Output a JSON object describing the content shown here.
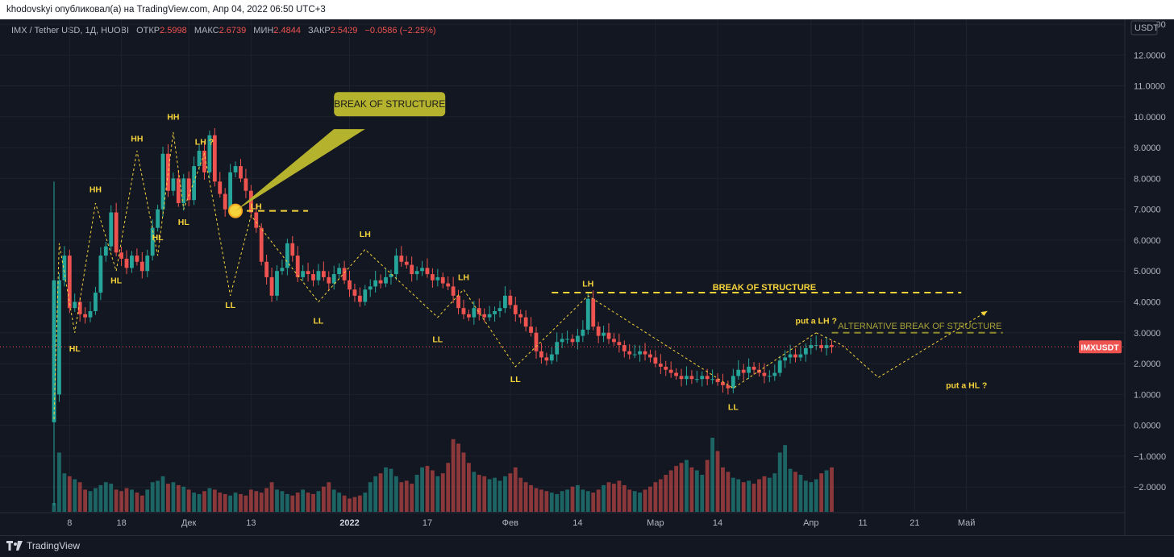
{
  "header": {
    "publisher_line": "khodovskyi опубликовал(а) на TradingView.com, Апр 04, 2022 06:50 UTC+3"
  },
  "legend": {
    "symbol": "IMX / Tether USD, 1Д, HUOBI",
    "open_label": "ОТКР",
    "open_value": "2.5998",
    "high_label": "МАКС",
    "high_value": "2.6739",
    "low_label": "МИН",
    "low_value": "2.4844",
    "close_label": "ЗАКР",
    "close_value": "2.5429",
    "change": "−0.0586 (−2.25%)"
  },
  "footer": {
    "brand": "TradingView"
  },
  "colors": {
    "up": "#26a69a",
    "down": "#ef5350",
    "annotation": "#f5d33b",
    "callout": "#b5b22d",
    "price_line": "#ef5350"
  },
  "chart_data": {
    "type": "candlestick",
    "currency_label": "USDT",
    "current_price_label": "IMXUSDT",
    "current_price": 2.5429,
    "y_ticks": [
      "13.0000",
      "12.0000",
      "11.0000",
      "10.0000",
      "9.0000",
      "8.0000",
      "7.0000",
      "6.0000",
      "5.0000",
      "4.0000",
      "3.0000",
      "2.0000",
      "1.0000",
      "0.0000",
      "−1.0000",
      "−2.0000"
    ],
    "y_tick_values": [
      13,
      12,
      11,
      10,
      9,
      8,
      7,
      6,
      5,
      4,
      3,
      2,
      1,
      0,
      -1,
      -2
    ],
    "x_ticks": [
      "8",
      "18",
      "Дек",
      "13",
      "2022",
      "17",
      "Фев",
      "14",
      "Мар",
      "14",
      "Апр",
      "11",
      "21",
      "Май"
    ],
    "x_tick_days": [
      3,
      13,
      26,
      38,
      57,
      72,
      88,
      101,
      116,
      128,
      146,
      156,
      166,
      176
    ],
    "ylim": [
      -2.7,
      13.0
    ],
    "close_path": [
      [
        0,
        1.0
      ],
      [
        1,
        4.7
      ],
      [
        2,
        5.5
      ],
      [
        3,
        3.8
      ],
      [
        4,
        4.0
      ],
      [
        5,
        3.6
      ],
      [
        6,
        3.5
      ],
      [
        7,
        3.7
      ],
      [
        8,
        4.3
      ],
      [
        9,
        5.5
      ],
      [
        10,
        5.8
      ],
      [
        11,
        6.9
      ],
      [
        12,
        5.6
      ],
      [
        13,
        5.4
      ],
      [
        14,
        5.1
      ],
      [
        15,
        5.5
      ],
      [
        16,
        5.3
      ],
      [
        17,
        5.0
      ],
      [
        18,
        5.5
      ],
      [
        19,
        6.4
      ],
      [
        20,
        7.0
      ],
      [
        21,
        8.8
      ],
      [
        22,
        7.6
      ],
      [
        23,
        8.0
      ],
      [
        24,
        7.2
      ],
      [
        25,
        8.0
      ],
      [
        26,
        7.3
      ],
      [
        27,
        8.4
      ],
      [
        28,
        8.9
      ],
      [
        29,
        8.2
      ],
      [
        30,
        9.4
      ],
      [
        31,
        7.9
      ],
      [
        32,
        7.5
      ],
      [
        33,
        7.0
      ],
      [
        34,
        8.2
      ],
      [
        35,
        8.4
      ],
      [
        36,
        8.0
      ],
      [
        37,
        7.6
      ],
      [
        38,
        6.9
      ],
      [
        39,
        6.4
      ],
      [
        40,
        5.3
      ],
      [
        41,
        4.8
      ],
      [
        42,
        4.2
      ],
      [
        43,
        5.0
      ],
      [
        44,
        5.1
      ],
      [
        45,
        5.9
      ],
      [
        46,
        5.5
      ],
      [
        47,
        4.8
      ],
      [
        48,
        5.0
      ],
      [
        49,
        4.9
      ],
      [
        50,
        4.7
      ],
      [
        51,
        5.0
      ],
      [
        52,
        4.8
      ],
      [
        53,
        4.6
      ],
      [
        54,
        4.9
      ],
      [
        55,
        5.1
      ],
      [
        56,
        4.7
      ],
      [
        57,
        4.4
      ],
      [
        58,
        4.2
      ],
      [
        59,
        4.0
      ],
      [
        60,
        4.4
      ],
      [
        61,
        4.5
      ],
      [
        62,
        4.7
      ],
      [
        63,
        4.6
      ],
      [
        64,
        4.8
      ],
      [
        65,
        4.9
      ],
      [
        66,
        5.5
      ],
      [
        67,
        5.3
      ],
      [
        68,
        5.2
      ],
      [
        69,
        4.9
      ],
      [
        70,
        5.0
      ],
      [
        71,
        5.1
      ],
      [
        72,
        4.9
      ],
      [
        73,
        4.7
      ],
      [
        74,
        4.8
      ],
      [
        75,
        4.6
      ],
      [
        76,
        4.5
      ],
      [
        77,
        4.2
      ],
      [
        78,
        3.8
      ],
      [
        79,
        3.6
      ],
      [
        80,
        3.5
      ],
      [
        81,
        3.8
      ],
      [
        82,
        3.6
      ],
      [
        83,
        3.5
      ],
      [
        84,
        3.6
      ],
      [
        85,
        3.7
      ],
      [
        86,
        3.8
      ],
      [
        87,
        4.2
      ],
      [
        88,
        3.9
      ],
      [
        89,
        3.6
      ],
      [
        90,
        3.5
      ],
      [
        91,
        3.2
      ],
      [
        92,
        3.0
      ],
      [
        93,
        2.4
      ],
      [
        94,
        2.2
      ],
      [
        95,
        2.1
      ],
      [
        96,
        2.3
      ],
      [
        97,
        2.7
      ],
      [
        98,
        2.8
      ],
      [
        99,
        2.8
      ],
      [
        100,
        2.7
      ],
      [
        101,
        2.9
      ],
      [
        102,
        3.1
      ],
      [
        103,
        4.1
      ],
      [
        104,
        3.2
      ],
      [
        105,
        2.9
      ],
      [
        106,
        3.0
      ],
      [
        107,
        2.8
      ],
      [
        108,
        2.7
      ],
      [
        109,
        2.6
      ],
      [
        110,
        2.4
      ],
      [
        111,
        2.3
      ],
      [
        112,
        2.3
      ],
      [
        113,
        2.4
      ],
      [
        114,
        2.3
      ],
      [
        115,
        2.2
      ],
      [
        116,
        2.0
      ],
      [
        117,
        1.9
      ],
      [
        118,
        1.8
      ],
      [
        119,
        1.7
      ],
      [
        120,
        1.6
      ],
      [
        121,
        1.5
      ],
      [
        122,
        1.6
      ],
      [
        123,
        1.5
      ],
      [
        124,
        1.5
      ],
      [
        125,
        1.6
      ],
      [
        126,
        1.5
      ],
      [
        127,
        1.5
      ],
      [
        128,
        1.4
      ],
      [
        129,
        1.3
      ],
      [
        130,
        1.2
      ],
      [
        131,
        1.6
      ],
      [
        132,
        1.8
      ],
      [
        133,
        1.7
      ],
      [
        134,
        1.9
      ],
      [
        135,
        1.8
      ],
      [
        136,
        1.7
      ],
      [
        137,
        1.6
      ],
      [
        138,
        1.6
      ],
      [
        139,
        1.7
      ],
      [
        140,
        2.1
      ],
      [
        141,
        2.2
      ],
      [
        142,
        2.3
      ],
      [
        143,
        2.2
      ],
      [
        144,
        2.3
      ],
      [
        145,
        2.5
      ],
      [
        146,
        2.6
      ],
      [
        147,
        2.6
      ],
      [
        148,
        2.5
      ],
      [
        149,
        2.6
      ],
      [
        150,
        2.54
      ]
    ],
    "volume_path": [
      12,
      80,
      52,
      48,
      44,
      40,
      30,
      28,
      32,
      36,
      40,
      38,
      30,
      28,
      32,
      30,
      26,
      22,
      30,
      40,
      42,
      48,
      38,
      40,
      36,
      34,
      30,
      26,
      24,
      28,
      32,
      30,
      26,
      24,
      22,
      26,
      24,
      22,
      30,
      28,
      26,
      32,
      40,
      30,
      28,
      24,
      22,
      26,
      30,
      26,
      24,
      28,
      34,
      40,
      30,
      26,
      22,
      18,
      20,
      22,
      26,
      40,
      48,
      52,
      60,
      58,
      48,
      40,
      42,
      38,
      50,
      60,
      62,
      56,
      48,
      52,
      66,
      98,
      92,
      80,
      66,
      54,
      50,
      48,
      44,
      46,
      42,
      48,
      52,
      60,
      46,
      40,
      36,
      32,
      30,
      28,
      26,
      24,
      28,
      30,
      34,
      36,
      30,
      28,
      26,
      30,
      36,
      40,
      38,
      42,
      36,
      30,
      28,
      26,
      30,
      34,
      40,
      44,
      50,
      56,
      62,
      66,
      70,
      60,
      56,
      50,
      70,
      100,
      82,
      60,
      54,
      46,
      44,
      40,
      42,
      38,
      44,
      48,
      46,
      52,
      80,
      90,
      58,
      54,
      50,
      42,
      40,
      44,
      52,
      56,
      60
    ],
    "annotations": {
      "swing_labels": [
        "HH",
        "HH",
        "HH",
        "LH ?",
        "LH",
        "LH",
        "LH",
        "LH",
        "HL",
        "HL",
        "HL",
        "HL",
        "LL",
        "LL",
        "LL",
        "LL",
        "LL",
        "put a LH ?",
        "put a HL ?"
      ],
      "callout": "BREAK OF STRUCTURE",
      "break_line_label": "BREAK OF STRUCTURE",
      "alt_break_label": "ALTERNATIVE BREAK OF STRUCTURE"
    }
  }
}
